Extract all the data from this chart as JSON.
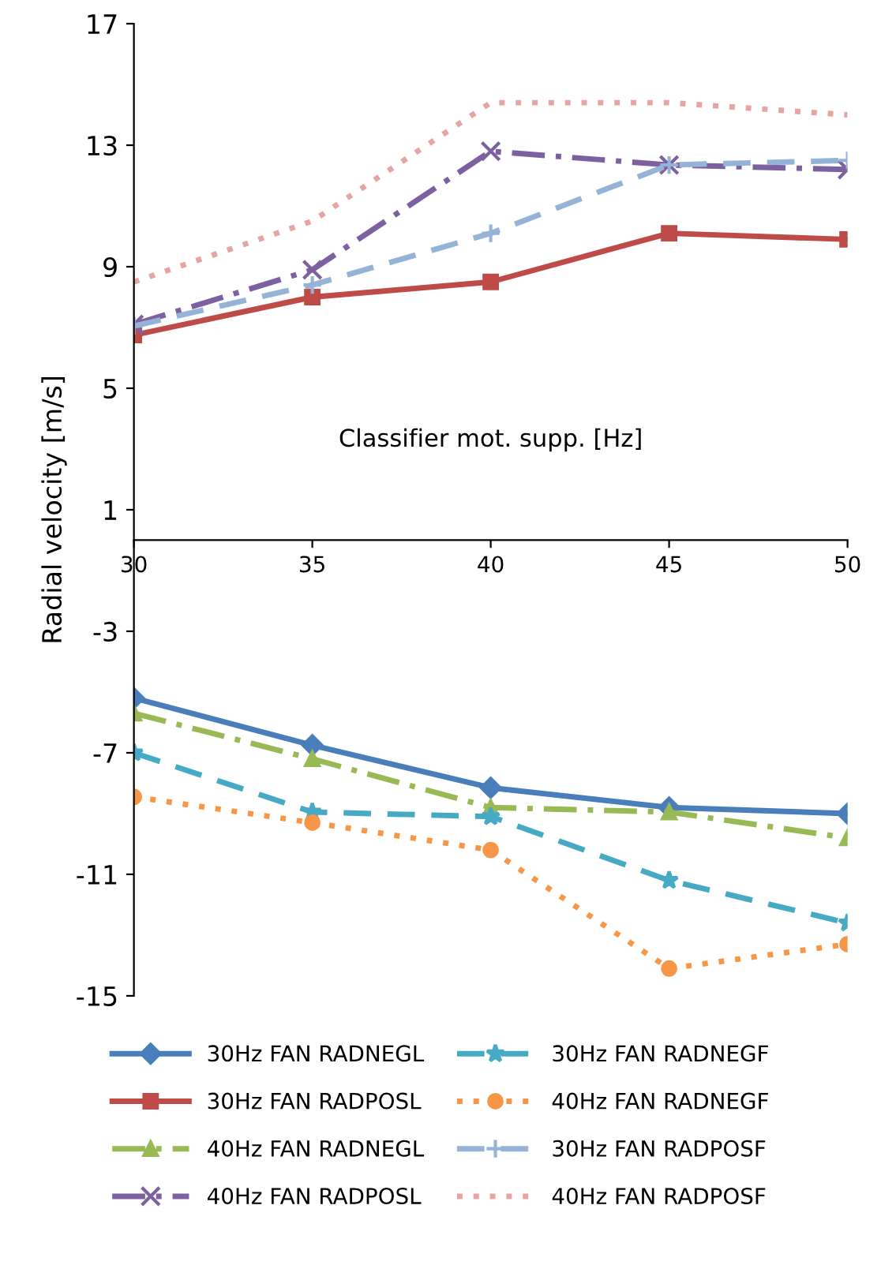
{
  "chart_data": {
    "type": "line",
    "xlabel": "Classifier mot. supp. [Hz]",
    "ylabel": "Radial velocity [m/s]",
    "x": [
      30,
      35,
      40,
      45,
      50
    ],
    "xlim": [
      30,
      50
    ],
    "xticks": [
      30,
      35,
      40,
      45,
      50
    ],
    "ylim": [
      -15,
      17
    ],
    "yticks": [
      -15,
      -11,
      -7,
      -3,
      1,
      5,
      9,
      13,
      17
    ],
    "grid": false,
    "legend": "bottom",
    "series": [
      {
        "name": "30Hz FAN RADNEGL",
        "color": "#4a7ebb",
        "marker": "diamond",
        "line_style": "solid",
        "values": [
          -5.2,
          -6.75,
          -8.15,
          -8.8,
          -9.0
        ]
      },
      {
        "name": "30Hz FAN RADPOSL",
        "color": "#be4b48",
        "marker": "square",
        "line_style": "solid",
        "values": [
          6.75,
          8.0,
          8.5,
          10.1,
          9.9
        ]
      },
      {
        "name": "40Hz FAN RADNEGL",
        "color": "#98b954",
        "marker": "triangle",
        "line_style": "dashdot",
        "values": [
          -5.7,
          -7.2,
          -8.8,
          -8.95,
          -9.8
        ]
      },
      {
        "name": "40Hz FAN RADPOSL",
        "color": "#7d60a0",
        "marker": "cross",
        "line_style": "dashdot",
        "values": [
          7.1,
          8.9,
          12.8,
          12.35,
          12.2
        ]
      },
      {
        "name": "30Hz FAN RADNEGF",
        "color": "#46aac5",
        "marker": "star",
        "line_style": "dashed",
        "values": [
          -7.0,
          -8.95,
          -9.1,
          -11.2,
          -12.6
        ]
      },
      {
        "name": "40Hz FAN RADNEGF",
        "color": "#f79646",
        "marker": "circle",
        "line_style": "dotted",
        "values": [
          -8.45,
          -9.3,
          -10.2,
          -14.1,
          -13.3
        ]
      },
      {
        "name": "30Hz FAN RADPOSF",
        "color": "#95b3d7",
        "marker": "plus",
        "line_style": "dashed",
        "values": [
          7.05,
          8.4,
          10.1,
          12.35,
          12.5
        ]
      },
      {
        "name": "40Hz FAN RADPOSF",
        "color": "#e6a5a4",
        "marker": "none",
        "line_style": "dotted",
        "values": [
          8.5,
          10.5,
          14.4,
          14.4,
          14.0
        ]
      }
    ]
  }
}
